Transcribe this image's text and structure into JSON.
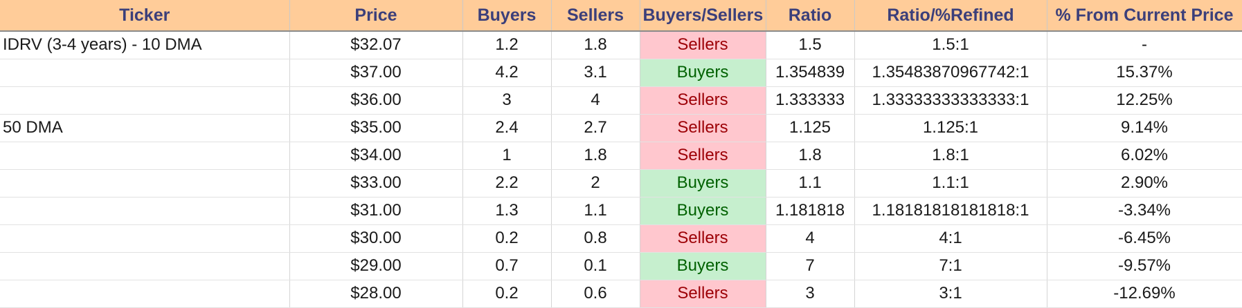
{
  "headers": {
    "ticker": "Ticker",
    "price": "Price",
    "buyers": "Buyers",
    "sellers": "Sellers",
    "buyers_sellers": "Buyers/Sellers",
    "ratio": "Ratio",
    "ratio_refined": "Ratio/%Refined",
    "pct_from_current": "% From Current Price"
  },
  "colors": {
    "header_bg": "#ffcc99",
    "header_text": "#3b3f7a",
    "buyers_bg": "#c6efce",
    "buyers_text": "#006100",
    "sellers_bg": "#ffc7ce",
    "sellers_text": "#9c0006"
  },
  "rows": [
    {
      "ticker": "IDRV (3-4 years) - 10 DMA",
      "price": "$32.07",
      "buyers": "1.2",
      "sellers": "1.8",
      "side": "Sellers",
      "ratio": "1.5",
      "refined": "1.5:1",
      "pct": "-"
    },
    {
      "ticker": "",
      "price": "$37.00",
      "buyers": "4.2",
      "sellers": "3.1",
      "side": "Buyers",
      "ratio": "1.354839",
      "refined": "1.35483870967742:1",
      "pct": "15.37%"
    },
    {
      "ticker": "",
      "price": "$36.00",
      "buyers": "3",
      "sellers": "4",
      "side": "Sellers",
      "ratio": "1.333333",
      "refined": "1.33333333333333:1",
      "pct": "12.25%"
    },
    {
      "ticker": "50 DMA",
      "price": "$35.00",
      "buyers": "2.4",
      "sellers": "2.7",
      "side": "Sellers",
      "ratio": "1.125",
      "refined": "1.125:1",
      "pct": "9.14%"
    },
    {
      "ticker": "",
      "price": "$34.00",
      "buyers": "1",
      "sellers": "1.8",
      "side": "Sellers",
      "ratio": "1.8",
      "refined": "1.8:1",
      "pct": "6.02%"
    },
    {
      "ticker": "",
      "price": "$33.00",
      "buyers": "2.2",
      "sellers": "2",
      "side": "Buyers",
      "ratio": "1.1",
      "refined": "1.1:1",
      "pct": "2.90%"
    },
    {
      "ticker": "",
      "price": "$31.00",
      "buyers": "1.3",
      "sellers": "1.1",
      "side": "Buyers",
      "ratio": "1.181818",
      "refined": "1.18181818181818:1",
      "pct": "-3.34%"
    },
    {
      "ticker": "",
      "price": "$30.00",
      "buyers": "0.2",
      "sellers": "0.8",
      "side": "Sellers",
      "ratio": "4",
      "refined": "4:1",
      "pct": "-6.45%"
    },
    {
      "ticker": "",
      "price": "$29.00",
      "buyers": "0.7",
      "sellers": "0.1",
      "side": "Buyers",
      "ratio": "7",
      "refined": "7:1",
      "pct": "-9.57%"
    },
    {
      "ticker": "",
      "price": "$28.00",
      "buyers": "0.2",
      "sellers": "0.6",
      "side": "Sellers",
      "ratio": "3",
      "refined": "3:1",
      "pct": "-12.69%"
    }
  ]
}
